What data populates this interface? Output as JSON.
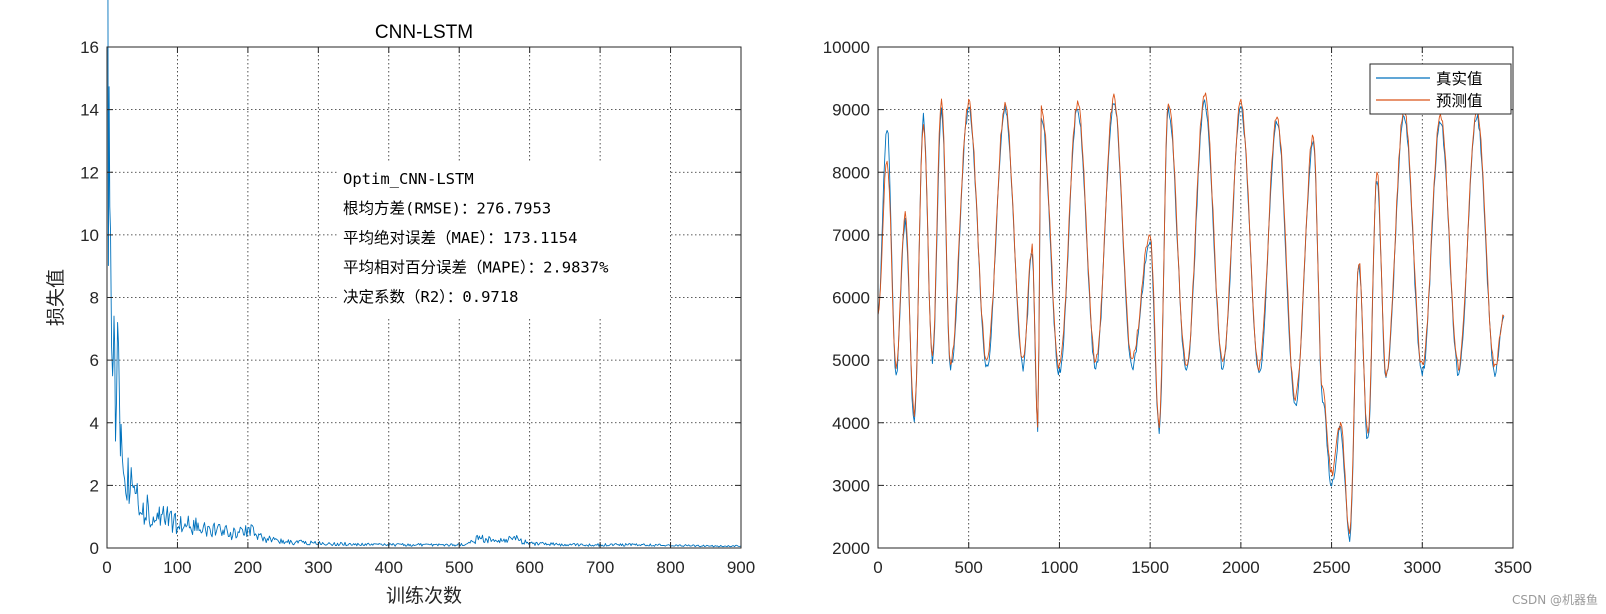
{
  "chart_data": [
    {
      "type": "line",
      "title": "CNN-LSTM",
      "xlabel": "训练次数",
      "ylabel": "损失值",
      "xlim": [
        0,
        900
      ],
      "ylim": [
        0,
        16
      ],
      "xticks": [
        0,
        100,
        200,
        300,
        400,
        500,
        600,
        700,
        800,
        900
      ],
      "yticks": [
        0,
        2,
        4,
        6,
        8,
        10,
        12,
        14,
        16
      ],
      "grid": true,
      "series": [
        {
          "color": "#0072BD",
          "x": [
            1,
            3,
            5,
            8,
            10,
            12,
            15,
            18,
            20,
            25,
            30,
            40,
            50,
            60,
            70,
            80,
            90,
            100,
            120,
            140,
            160,
            180,
            200,
            220,
            250,
            300,
            350,
            400,
            450,
            500,
            520,
            530,
            550,
            580,
            600,
            650,
            700,
            750,
            800,
            850,
            900
          ],
          "values": [
            16.0,
            14.0,
            10.6,
            6.5,
            5.2,
            4.8,
            7.6,
            3.8,
            3.2,
            2.6,
            2.0,
            1.6,
            1.3,
            1.2,
            1.0,
            1.1,
            0.9,
            0.8,
            0.7,
            0.6,
            0.55,
            0.45,
            0.6,
            0.3,
            0.2,
            0.15,
            0.12,
            0.1,
            0.1,
            0.1,
            0.2,
            0.35,
            0.2,
            0.3,
            0.15,
            0.1,
            0.1,
            0.1,
            0.08,
            0.07,
            0.06
          ]
        }
      ],
      "annotation": {
        "lines": [
          "Optim_CNN-LSTM",
          "根均方差(RMSE)：276.7953",
          "平均绝对误差（MAE）：173.1154",
          "平均相对百分误差（MAPE）：2.9837%",
          "决定系数（R2）：0.9718"
        ]
      }
    },
    {
      "type": "line",
      "title": "",
      "xlabel": "",
      "ylabel": "",
      "xlim": [
        0,
        3500
      ],
      "ylim": [
        2000,
        10000
      ],
      "xticks": [
        0,
        500,
        1000,
        1500,
        2000,
        2500,
        3000,
        3500
      ],
      "yticks": [
        2000,
        3000,
        4000,
        5000,
        6000,
        7000,
        8000,
        9000,
        10000
      ],
      "grid": true,
      "legend": "top-right",
      "series": [
        {
          "name": "真实值",
          "color": "#0072BD",
          "x": [
            0,
            50,
            100,
            150,
            200,
            250,
            300,
            350,
            400,
            500,
            600,
            700,
            800,
            850,
            880,
            900,
            1000,
            1100,
            1200,
            1300,
            1400,
            1500,
            1550,
            1600,
            1700,
            1800,
            1900,
            2000,
            2100,
            2200,
            2300,
            2400,
            2450,
            2500,
            2550,
            2600,
            2650,
            2700,
            2750,
            2800,
            2900,
            3000,
            3100,
            3200,
            3300,
            3400,
            3450
          ],
          "values": [
            5800,
            8700,
            4800,
            7200,
            4000,
            8900,
            5000,
            9000,
            4900,
            9000,
            4900,
            9000,
            4900,
            6700,
            3900,
            8900,
            4800,
            9000,
            4900,
            9100,
            4900,
            6900,
            3900,
            9000,
            4800,
            9100,
            4900,
            9000,
            4800,
            8800,
            4300,
            8500,
            4400,
            3000,
            3900,
            2100,
            6500,
            3700,
            7900,
            4700,
            8900,
            4800,
            8800,
            4800,
            8900,
            4800,
            5700
          ]
        },
        {
          "name": "预测值",
          "color": "#D95319",
          "x": [
            0,
            50,
            100,
            150,
            200,
            250,
            300,
            350,
            400,
            500,
            600,
            700,
            800,
            850,
            880,
            900,
            1000,
            1100,
            1200,
            1300,
            1400,
            1500,
            1550,
            1600,
            1700,
            1800,
            1900,
            2000,
            2100,
            2200,
            2300,
            2400,
            2450,
            2500,
            2550,
            2600,
            2650,
            2700,
            2750,
            2800,
            2900,
            3000,
            3100,
            3200,
            3300,
            3400,
            3450
          ],
          "values": [
            5700,
            8200,
            4900,
            7300,
            4100,
            8800,
            5100,
            9150,
            5000,
            9100,
            5000,
            9050,
            5000,
            6800,
            4000,
            9050,
            4900,
            9100,
            5000,
            9200,
            5000,
            7000,
            4000,
            9100,
            4900,
            9250,
            5000,
            9100,
            4900,
            8900,
            4400,
            8600,
            4500,
            3200,
            4000,
            2200,
            6600,
            3800,
            8000,
            4800,
            9000,
            4900,
            8900,
            4900,
            9000,
            4900,
            5700
          ]
        }
      ]
    }
  ],
  "footer": {
    "watermark": "CSDN @机器鱼"
  }
}
